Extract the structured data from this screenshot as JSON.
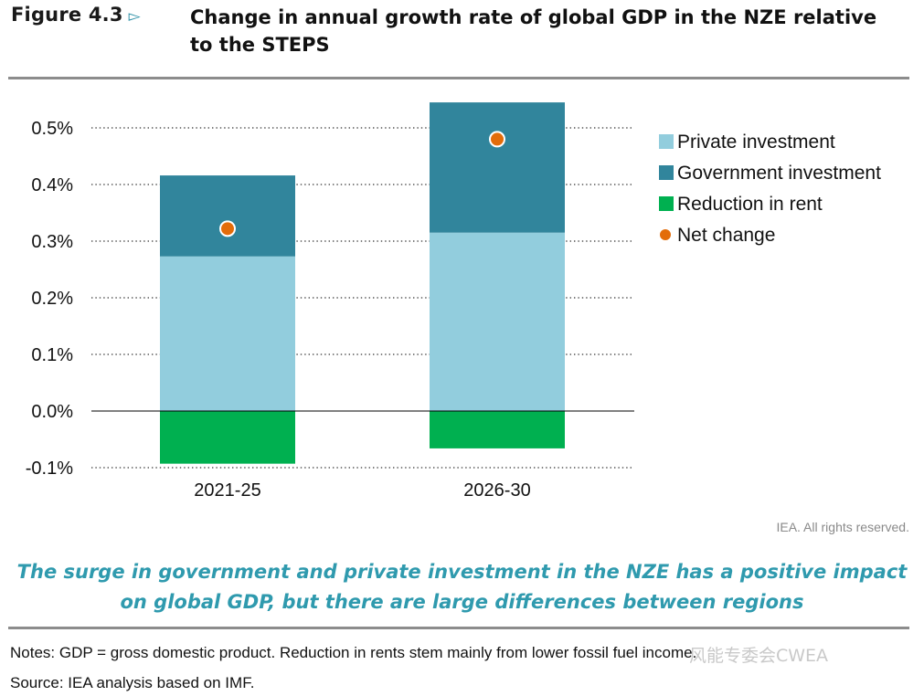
{
  "figure": {
    "label": "Figure 4.3",
    "title": "Change in annual growth rate of global GDP in the NZE relative to the STEPS"
  },
  "chart_data": {
    "type": "bar",
    "stacked": true,
    "categories": [
      "2021-25",
      "2026-30"
    ],
    "series": [
      {
        "name": "Private investment",
        "color": "#92cddd",
        "values": [
          0.273,
          0.315
        ]
      },
      {
        "name": "Government investment",
        "color": "#31859c",
        "values": [
          0.143,
          0.23
        ]
      },
      {
        "name": "Reduction in rent",
        "color": "#00b050",
        "values": [
          -0.093,
          -0.066
        ]
      }
    ],
    "net_change": {
      "name": "Net change",
      "color": "#e36c0a",
      "values": [
        0.322,
        0.48
      ]
    },
    "ylim": [
      -0.1,
      0.5
    ],
    "yticks": [
      -0.1,
      0,
      0.1,
      0.2,
      0.3,
      0.4,
      0.5
    ],
    "ytick_labels": [
      "-0.1%",
      "0.0%",
      "0.1%",
      "0.2%",
      "0.3%",
      "0.4%",
      "0.5%"
    ],
    "grid": true,
    "legend_position": "right",
    "title": "",
    "xlabel": "",
    "ylabel": ""
  },
  "rights": "IEA. All rights reserved.",
  "caption": {
    "line1": "The surge in government and private investment in the NZE has a positive impact",
    "line2": "on global GDP, but there are large differences between regions"
  },
  "notes": "Notes: GDP = gross domestic product. Reduction in rents stem mainly from lower fossil fuel income.",
  "source": "Source: IEA analysis based on IMF.",
  "watermark": "风能专委会CWEA"
}
